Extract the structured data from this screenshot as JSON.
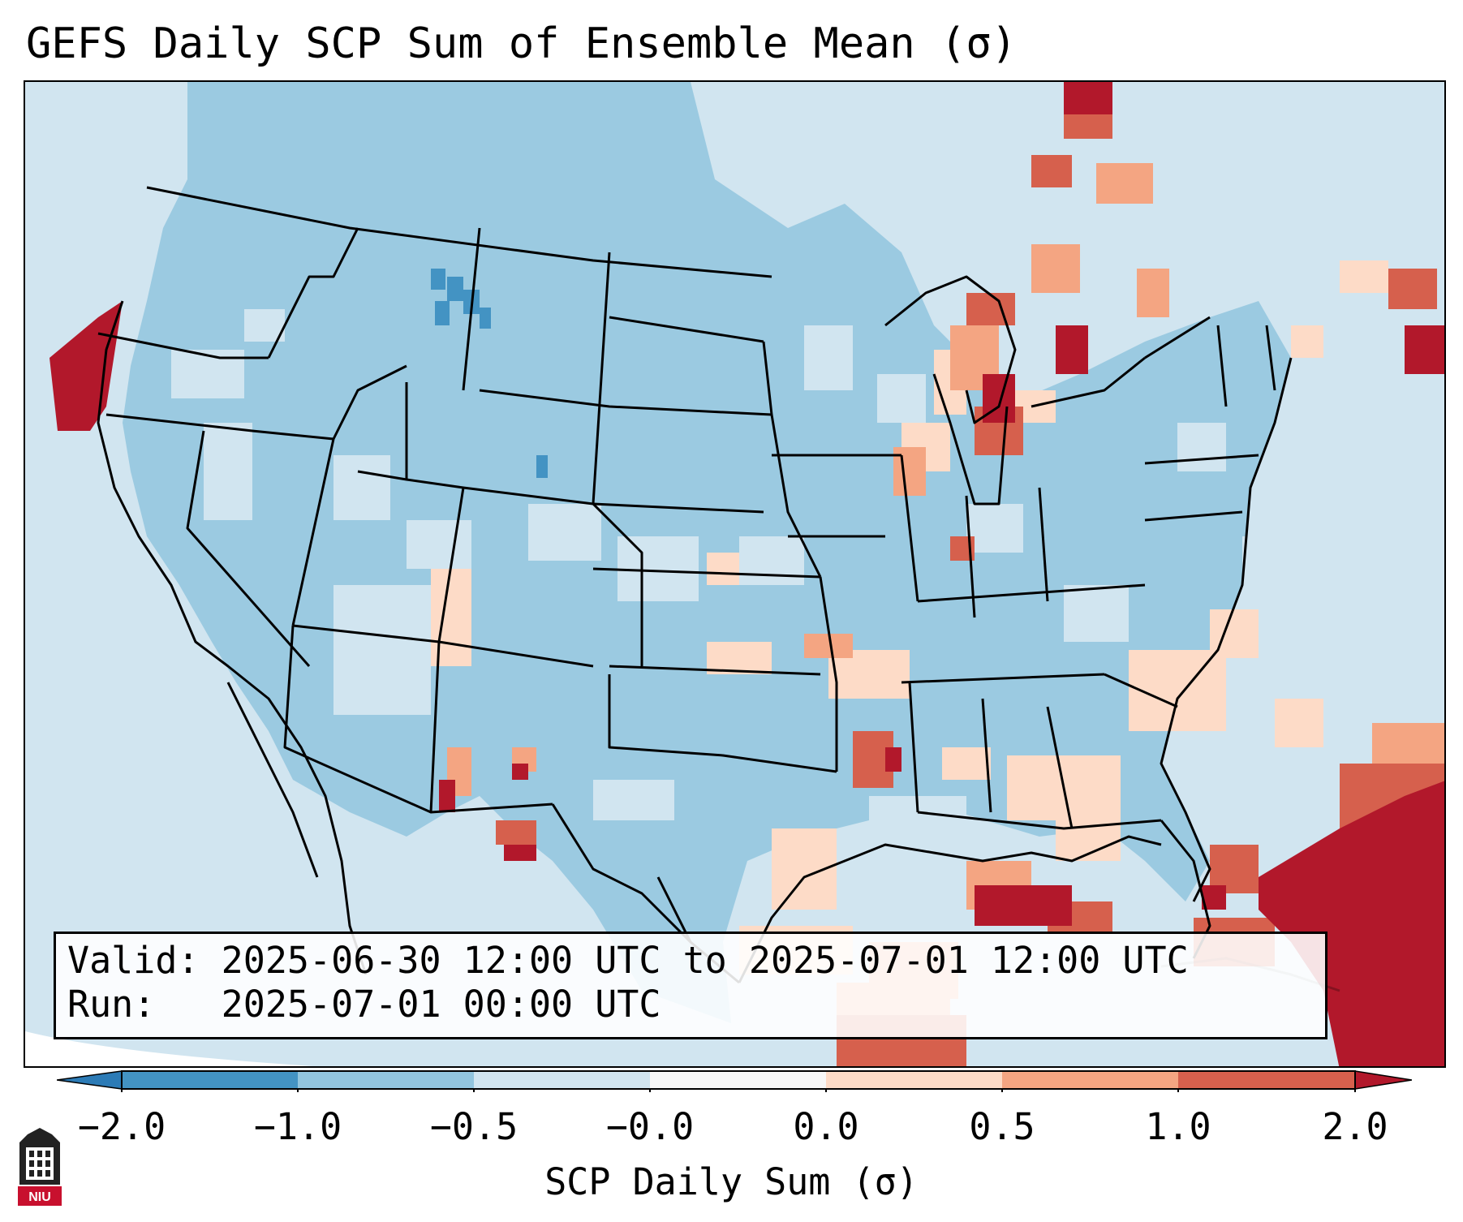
{
  "title": "GEFS Daily SCP Sum of Ensemble Mean (σ)",
  "info": {
    "valid_line": "Valid: 2025-06-30 12:00 UTC to 2025-07-01 12:00 UTC",
    "run_line": "Run:   2025-07-01 00:00 UTC"
  },
  "colorbar": {
    "label": "SCP Daily Sum (σ)",
    "ticks": [
      "−2.0",
      "−1.0",
      "−0.5",
      "−0.0",
      "0.0",
      "0.5",
      "1.0",
      "2.0"
    ],
    "colors": {
      "under": "#2c7bb6",
      "bin_neg2_neg1": "#4393c3",
      "bin_neg1_neg05": "#92c5de",
      "bin_neg05_0": "#d1e5f0",
      "bin_zero": "#f7f7f7",
      "bin_0_05": "#fddbc7",
      "bin_05_1": "#f4a582",
      "bin_1_2": "#d6604d",
      "over": "#b2182b"
    }
  },
  "map": {
    "region": "CONUS",
    "ocean_color": "#d1e5f0",
    "border_color": "#000000"
  },
  "logo": {
    "text": "NIU"
  }
}
